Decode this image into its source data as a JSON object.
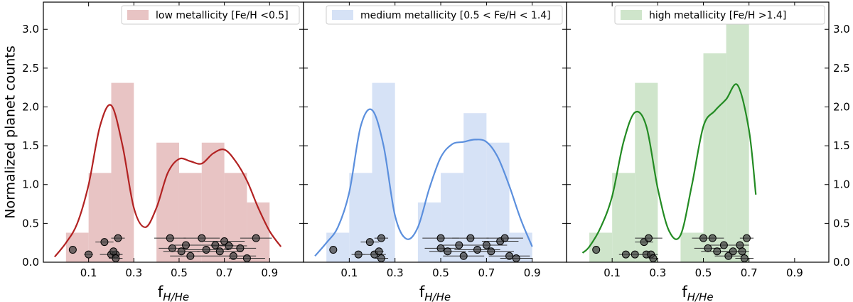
{
  "figure": {
    "ylabel": "Normalized planet counts",
    "yticks": [
      "0.0",
      "0.5",
      "1.0",
      "1.5",
      "2.0",
      "2.5",
      "3.0"
    ],
    "xticks": [
      "0.1",
      "0.3",
      "0.5",
      "0.7",
      "0.9"
    ]
  },
  "chart_data": [
    {
      "type": "bar",
      "title": "",
      "xlabel": "f",
      "xlabel_sub": "H/He",
      "ylabel": "Normalized planet counts",
      "xlim": [
        -0.1,
        1.05
      ],
      "ylim": [
        0,
        3.35
      ],
      "legend": "low metallicity [Fe/H <0.5]",
      "legend_position": "top-right",
      "color": "#e8c4c4",
      "line_color": "#b22222",
      "bin_width": 0.1,
      "histogram": [
        {
          "x0": 0.0,
          "x1": 0.1,
          "value": 0.38
        },
        {
          "x0": 0.1,
          "x1": 0.2,
          "value": 1.15
        },
        {
          "x0": 0.2,
          "x1": 0.3,
          "value": 2.31
        },
        {
          "x0": 0.4,
          "x1": 0.5,
          "value": 1.54
        },
        {
          "x0": 0.5,
          "x1": 0.6,
          "value": 1.15
        },
        {
          "x0": 0.6,
          "x1": 0.7,
          "value": 1.54
        },
        {
          "x0": 0.7,
          "x1": 0.8,
          "value": 1.15
        },
        {
          "x0": 0.8,
          "x1": 0.9,
          "value": 0.77
        }
      ],
      "kde": {
        "x": [
          -0.05,
          0.0,
          0.05,
          0.1,
          0.15,
          0.2,
          0.25,
          0.3,
          0.35,
          0.4,
          0.45,
          0.5,
          0.55,
          0.6,
          0.65,
          0.7,
          0.75,
          0.8,
          0.85,
          0.9,
          0.95
        ],
        "y": [
          0.07,
          0.25,
          0.5,
          1.0,
          1.75,
          2.02,
          1.5,
          0.7,
          0.45,
          0.7,
          1.15,
          1.33,
          1.3,
          1.27,
          1.4,
          1.45,
          1.3,
          1.05,
          0.7,
          0.4,
          0.2
        ]
      },
      "points": [
        {
          "x": 0.03,
          "y": 0.16,
          "err": 0.0
        },
        {
          "x": 0.1,
          "y": 0.1,
          "err": 0.02
        },
        {
          "x": 0.17,
          "y": 0.26,
          "err": 0.04
        },
        {
          "x": 0.2,
          "y": 0.1,
          "err": 0.05
        },
        {
          "x": 0.22,
          "y": 0.1,
          "err": 0.03
        },
        {
          "x": 0.23,
          "y": 0.31,
          "err": 0.03
        },
        {
          "x": 0.21,
          "y": 0.14,
          "err": 0.02
        },
        {
          "x": 0.22,
          "y": 0.05,
          "err": 0.03
        },
        {
          "x": 0.46,
          "y": 0.31,
          "err": 0.07
        },
        {
          "x": 0.47,
          "y": 0.18,
          "err": 0.06
        },
        {
          "x": 0.51,
          "y": 0.14,
          "err": 0.08
        },
        {
          "x": 0.53,
          "y": 0.22,
          "err": 0.06
        },
        {
          "x": 0.55,
          "y": 0.08,
          "err": 0.09
        },
        {
          "x": 0.6,
          "y": 0.31,
          "err": 0.08
        },
        {
          "x": 0.62,
          "y": 0.16,
          "err": 0.1
        },
        {
          "x": 0.66,
          "y": 0.22,
          "err": 0.08
        },
        {
          "x": 0.68,
          "y": 0.14,
          "err": 0.1
        },
        {
          "x": 0.7,
          "y": 0.27,
          "err": 0.09
        },
        {
          "x": 0.72,
          "y": 0.21,
          "err": 0.08
        },
        {
          "x": 0.74,
          "y": 0.08,
          "err": 0.1
        },
        {
          "x": 0.77,
          "y": 0.18,
          "err": 0.07
        },
        {
          "x": 0.8,
          "y": 0.05,
          "err": 0.08
        },
        {
          "x": 0.84,
          "y": 0.31,
          "err": 0.07
        }
      ]
    },
    {
      "type": "bar",
      "title": "",
      "xlabel": "f",
      "xlabel_sub": "H/He",
      "xlim": [
        -0.1,
        1.05
      ],
      "ylim": [
        0,
        3.35
      ],
      "legend": "medium metallicity [0.5 < Fe/H < 1.4]",
      "legend_position": "top-right",
      "color": "#d6e2f6",
      "line_color": "#5b8fdd",
      "bin_width": 0.1,
      "histogram": [
        {
          "x0": 0.0,
          "x1": 0.1,
          "value": 0.38
        },
        {
          "x0": 0.1,
          "x1": 0.2,
          "value": 1.15
        },
        {
          "x0": 0.2,
          "x1": 0.3,
          "value": 2.31
        },
        {
          "x0": 0.4,
          "x1": 0.5,
          "value": 0.77
        },
        {
          "x0": 0.5,
          "x1": 0.6,
          "value": 1.15
        },
        {
          "x0": 0.6,
          "x1": 0.7,
          "value": 1.92
        },
        {
          "x0": 0.7,
          "x1": 0.8,
          "value": 1.54
        },
        {
          "x0": 0.8,
          "x1": 0.9,
          "value": 0.38
        }
      ],
      "kde": {
        "x": [
          -0.05,
          0.0,
          0.05,
          0.1,
          0.15,
          0.2,
          0.25,
          0.3,
          0.35,
          0.4,
          0.45,
          0.5,
          0.55,
          0.6,
          0.65,
          0.7,
          0.75,
          0.8,
          0.85,
          0.9
        ],
        "y": [
          0.08,
          0.25,
          0.45,
          0.9,
          1.75,
          1.96,
          1.5,
          0.6,
          0.3,
          0.45,
          0.95,
          1.35,
          1.52,
          1.55,
          1.58,
          1.55,
          1.35,
          0.98,
          0.55,
          0.2
        ]
      },
      "points": [
        {
          "x": 0.03,
          "y": 0.16,
          "err": 0.0
        },
        {
          "x": 0.14,
          "y": 0.1,
          "err": 0.03
        },
        {
          "x": 0.19,
          "y": 0.26,
          "err": 0.04
        },
        {
          "x": 0.21,
          "y": 0.1,
          "err": 0.05
        },
        {
          "x": 0.24,
          "y": 0.31,
          "err": 0.03
        },
        {
          "x": 0.23,
          "y": 0.14,
          "err": 0.02
        },
        {
          "x": 0.24,
          "y": 0.05,
          "err": 0.03
        },
        {
          "x": 0.5,
          "y": 0.31,
          "err": 0.08
        },
        {
          "x": 0.5,
          "y": 0.18,
          "err": 0.07
        },
        {
          "x": 0.53,
          "y": 0.14,
          "err": 0.08
        },
        {
          "x": 0.58,
          "y": 0.22,
          "err": 0.07
        },
        {
          "x": 0.6,
          "y": 0.08,
          "err": 0.09
        },
        {
          "x": 0.63,
          "y": 0.31,
          "err": 0.08
        },
        {
          "x": 0.66,
          "y": 0.16,
          "err": 0.1
        },
        {
          "x": 0.7,
          "y": 0.22,
          "err": 0.09
        },
        {
          "x": 0.72,
          "y": 0.14,
          "err": 0.1
        },
        {
          "x": 0.76,
          "y": 0.27,
          "err": 0.08
        },
        {
          "x": 0.78,
          "y": 0.31,
          "err": 0.08
        },
        {
          "x": 0.8,
          "y": 0.08,
          "err": 0.09
        },
        {
          "x": 0.83,
          "y": 0.05,
          "err": 0.07
        }
      ]
    },
    {
      "type": "bar",
      "title": "",
      "xlabel": "f",
      "xlabel_sub": "H/He",
      "xlim": [
        -0.1,
        1.05
      ],
      "ylim": [
        0,
        3.35
      ],
      "legend": "high metallicity [Fe/H >1.4]",
      "legend_position": "top-right",
      "color": "#cfe5cb",
      "line_color": "#238b23",
      "bin_width": 0.1,
      "histogram": [
        {
          "x0": 0.0,
          "x1": 0.1,
          "value": 0.38
        },
        {
          "x0": 0.1,
          "x1": 0.2,
          "value": 1.15
        },
        {
          "x0": 0.2,
          "x1": 0.3,
          "value": 2.31
        },
        {
          "x0": 0.4,
          "x1": 0.5,
          "value": 0.38
        },
        {
          "x0": 0.5,
          "x1": 0.6,
          "value": 2.69
        },
        {
          "x0": 0.6,
          "x1": 0.7,
          "value": 3.08
        }
      ],
      "kde": {
        "x": [
          -0.03,
          0.0,
          0.05,
          0.1,
          0.15,
          0.2,
          0.25,
          0.3,
          0.35,
          0.4,
          0.45,
          0.5,
          0.55,
          0.6,
          0.65,
          0.7,
          0.73
        ],
        "y": [
          0.12,
          0.2,
          0.45,
          0.85,
          1.55,
          1.93,
          1.75,
          0.95,
          0.4,
          0.35,
          1.0,
          1.75,
          1.95,
          2.1,
          2.28,
          1.7,
          0.87
        ]
      },
      "points": [
        {
          "x": 0.03,
          "y": 0.16,
          "err": 0.0
        },
        {
          "x": 0.16,
          "y": 0.1,
          "err": 0.03
        },
        {
          "x": 0.2,
          "y": 0.1,
          "err": 0.03
        },
        {
          "x": 0.24,
          "y": 0.26,
          "err": 0.04
        },
        {
          "x": 0.25,
          "y": 0.1,
          "err": 0.04
        },
        {
          "x": 0.26,
          "y": 0.31,
          "err": 0.06
        },
        {
          "x": 0.27,
          "y": 0.1,
          "err": 0.03
        },
        {
          "x": 0.28,
          "y": 0.05,
          "err": 0.02
        },
        {
          "x": 0.5,
          "y": 0.31,
          "err": 0.05
        },
        {
          "x": 0.52,
          "y": 0.18,
          "err": 0.06
        },
        {
          "x": 0.54,
          "y": 0.31,
          "err": 0.05
        },
        {
          "x": 0.56,
          "y": 0.14,
          "err": 0.07
        },
        {
          "x": 0.59,
          "y": 0.22,
          "err": 0.06
        },
        {
          "x": 0.61,
          "y": 0.08,
          "err": 0.06
        },
        {
          "x": 0.63,
          "y": 0.14,
          "err": 0.05
        },
        {
          "x": 0.66,
          "y": 0.22,
          "err": 0.04
        },
        {
          "x": 0.68,
          "y": 0.05,
          "err": 0.04
        },
        {
          "x": 0.69,
          "y": 0.31,
          "err": 0.03
        },
        {
          "x": 0.67,
          "y": 0.14,
          "err": 0.03
        }
      ]
    }
  ]
}
